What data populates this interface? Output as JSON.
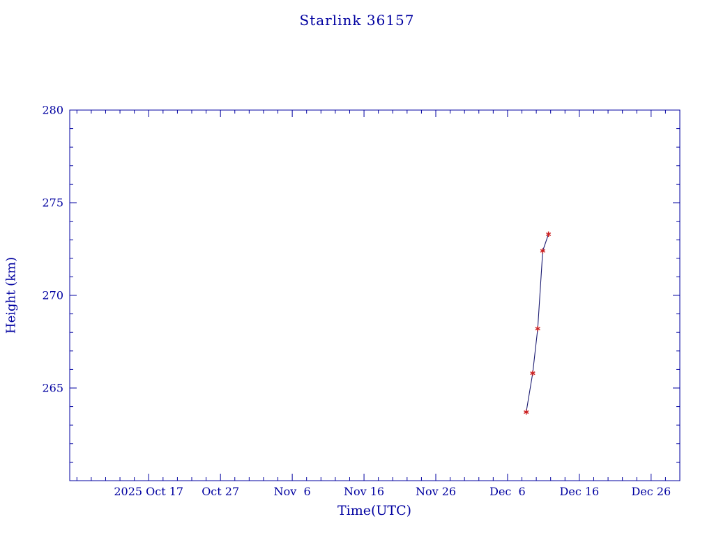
{
  "page": {
    "background": "#ffffff"
  },
  "chart_data": {
    "type": "line",
    "title": "Starlink 36157",
    "xlabel": "Time(UTC)",
    "ylabel": "Height (km)",
    "x_axis": {
      "epoch_left_edge": "2025-10-06",
      "range_days": [
        0,
        85
      ],
      "tick_days": [
        11,
        21,
        31,
        41,
        51,
        61,
        71,
        81
      ],
      "tick_labels": [
        "2025 Oct 17",
        "Oct 27",
        "Nov  6",
        "Nov 16",
        "Nov 26",
        "Dec  6",
        "Dec 16",
        "Dec 26"
      ],
      "minor_tick_step_days": 2
    },
    "y_axis": {
      "range_km": [
        260,
        280
      ],
      "tick_values": [
        265,
        270,
        275,
        280
      ],
      "tick_labels": [
        "265",
        "270",
        "275",
        "280"
      ],
      "minor_tick_step_km": 1
    },
    "series": [
      {
        "name": "height-history",
        "marker": "asterisk",
        "marker_color": "#cc2020",
        "line_color": "#191970",
        "points": [
          {
            "day": 63.6,
            "approx_date": "2025-12-08",
            "height_km": 263.7
          },
          {
            "day": 64.5,
            "approx_date": "2025-12-09",
            "height_km": 265.8
          },
          {
            "day": 65.2,
            "approx_date": "2025-12-10",
            "height_km": 268.2
          },
          {
            "day": 65.9,
            "approx_date": "2025-12-11",
            "height_km": 272.4
          },
          {
            "day": 66.7,
            "approx_date": "2025-12-12",
            "height_km": 273.3
          }
        ]
      }
    ],
    "style": {
      "axis_color": "#0000a0",
      "text_color": "#0000a0",
      "background": "#ffffff"
    }
  }
}
